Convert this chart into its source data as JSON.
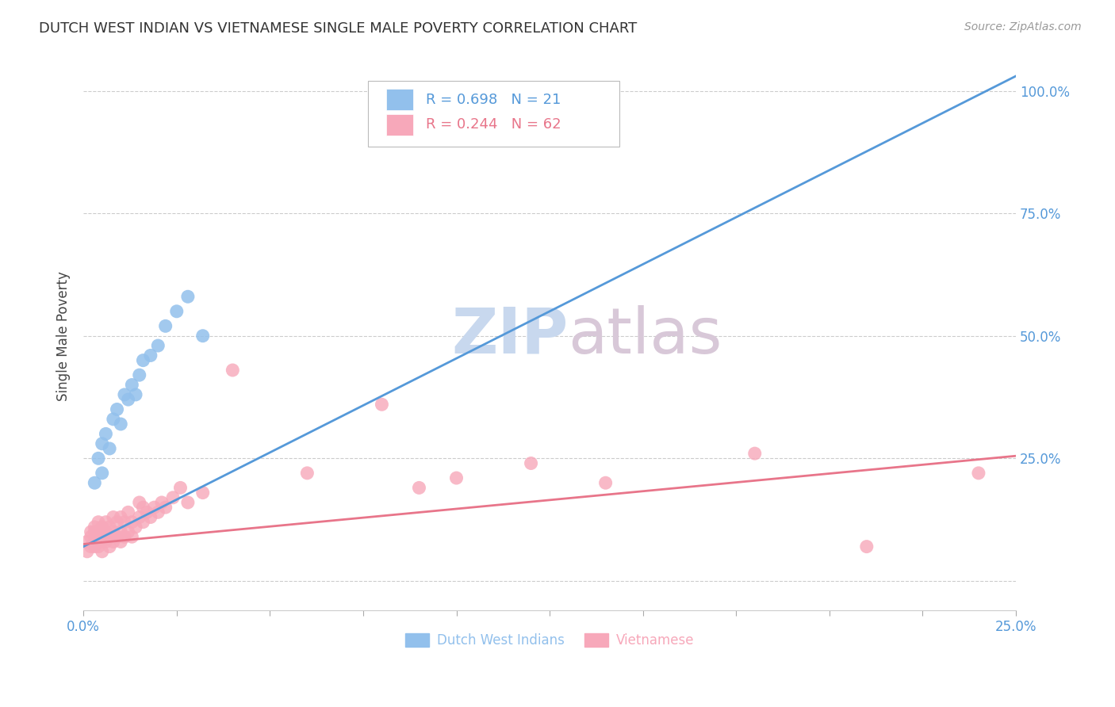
{
  "title": "DUTCH WEST INDIAN VS VIETNAMESE SINGLE MALE POVERTY CORRELATION CHART",
  "source": "Source: ZipAtlas.com",
  "ylabel": "Single Male Poverty",
  "y_ticks": [
    0.0,
    0.25,
    0.5,
    0.75,
    1.0
  ],
  "y_tick_labels": [
    "",
    "25.0%",
    "50.0%",
    "75.0%",
    "100.0%"
  ],
  "x_range": [
    0.0,
    0.25
  ],
  "y_range": [
    -0.06,
    1.06
  ],
  "blue_R": 0.698,
  "blue_N": 21,
  "pink_R": 0.244,
  "pink_N": 62,
  "blue_color": "#92C0EC",
  "pink_color": "#F7A8BA",
  "blue_line_color": "#5599D9",
  "pink_line_color": "#E8758A",
  "blue_label": "Dutch West Indians",
  "pink_label": "Vietnamese",
  "watermark_zip": "ZIP",
  "watermark_atlas": "atlas",
  "background_color": "#FFFFFF",
  "blue_line_x0": 0.0,
  "blue_line_y0": 0.07,
  "blue_line_x1": 0.25,
  "blue_line_y1": 1.03,
  "pink_line_x0": 0.0,
  "pink_line_y0": 0.075,
  "pink_line_x1": 0.25,
  "pink_line_y1": 0.255,
  "blue_scatter_x": [
    0.003,
    0.004,
    0.005,
    0.005,
    0.006,
    0.007,
    0.008,
    0.009,
    0.01,
    0.011,
    0.012,
    0.013,
    0.014,
    0.015,
    0.016,
    0.018,
    0.02,
    0.022,
    0.025,
    0.028,
    0.032
  ],
  "blue_scatter_y": [
    0.2,
    0.25,
    0.22,
    0.28,
    0.3,
    0.27,
    0.33,
    0.35,
    0.32,
    0.38,
    0.37,
    0.4,
    0.38,
    0.42,
    0.45,
    0.46,
    0.48,
    0.52,
    0.55,
    0.58,
    0.5
  ],
  "pink_scatter_x": [
    0.001,
    0.001,
    0.002,
    0.002,
    0.002,
    0.003,
    0.003,
    0.003,
    0.003,
    0.004,
    0.004,
    0.004,
    0.004,
    0.005,
    0.005,
    0.005,
    0.005,
    0.006,
    0.006,
    0.006,
    0.007,
    0.007,
    0.007,
    0.008,
    0.008,
    0.008,
    0.009,
    0.009,
    0.01,
    0.01,
    0.01,
    0.011,
    0.011,
    0.012,
    0.012,
    0.013,
    0.013,
    0.014,
    0.015,
    0.015,
    0.016,
    0.016,
    0.017,
    0.018,
    0.019,
    0.02,
    0.021,
    0.022,
    0.024,
    0.026,
    0.028,
    0.032,
    0.04,
    0.06,
    0.08,
    0.09,
    0.1,
    0.12,
    0.14,
    0.18,
    0.21,
    0.24
  ],
  "pink_scatter_y": [
    0.06,
    0.08,
    0.07,
    0.09,
    0.1,
    0.07,
    0.08,
    0.1,
    0.11,
    0.07,
    0.09,
    0.1,
    0.12,
    0.06,
    0.08,
    0.09,
    0.11,
    0.08,
    0.1,
    0.12,
    0.07,
    0.09,
    0.11,
    0.08,
    0.1,
    0.13,
    0.09,
    0.12,
    0.08,
    0.1,
    0.13,
    0.09,
    0.12,
    0.1,
    0.14,
    0.09,
    0.12,
    0.11,
    0.13,
    0.16,
    0.12,
    0.15,
    0.14,
    0.13,
    0.15,
    0.14,
    0.16,
    0.15,
    0.17,
    0.19,
    0.16,
    0.18,
    0.43,
    0.22,
    0.36,
    0.19,
    0.21,
    0.24,
    0.2,
    0.26,
    0.07,
    0.22
  ]
}
